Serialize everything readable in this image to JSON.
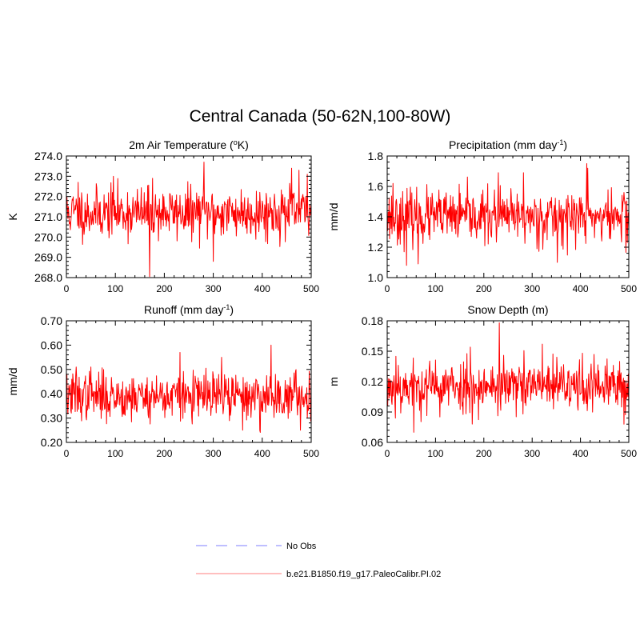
{
  "figure": {
    "title": "Central Canada (50-62N,100-80W)"
  },
  "legend": {
    "position": "bottom-center",
    "items": [
      {
        "label": "No Obs",
        "color": "#9999ff",
        "dash": true
      },
      {
        "label": "b.e21.B1850.f19_g17.PaleoCalibr.PI.02",
        "color": "#ff9999",
        "dash": false
      }
    ]
  },
  "chart_data": [
    {
      "type": "line",
      "title": "2m Air Temperature (",
      "title_unit": "o",
      "title_unit_mode": "sup",
      "title_after": "K)",
      "ylabel": "K",
      "xlim": [
        0,
        500
      ],
      "ylim": [
        268.0,
        274.0
      ],
      "xticks": [
        "0",
        "100",
        "200",
        "300",
        "400",
        "500"
      ],
      "yticks": [
        "268.0",
        "269.0",
        "270.0",
        "271.0",
        "272.0",
        "273.0",
        "274.0"
      ],
      "series": [
        {
          "color": "#ff0000",
          "mean": 271.2,
          "sd": 0.62,
          "seed": 11,
          "spikes": [
            [
              24,
              272.7
            ],
            [
              96,
              273.0
            ],
            [
              170,
              268.05
            ],
            [
              176,
              272.9
            ],
            [
              281,
              273.7
            ],
            [
              300,
              268.8
            ],
            [
              460,
              273.4
            ],
            [
              475,
              273.3
            ],
            [
              492,
              273.1
            ]
          ]
        }
      ]
    },
    {
      "type": "line",
      "title": "Precipitation (mm day",
      "title_unit": "-1",
      "title_unit_mode": "sup",
      "title_after": ")",
      "ylabel": "mm/d",
      "xlim": [
        0,
        500
      ],
      "ylim": [
        1.0,
        1.8
      ],
      "xticks": [
        "0",
        "100",
        "200",
        "300",
        "400",
        "500"
      ],
      "yticks": [
        "1.0",
        "1.2",
        "1.4",
        "1.6",
        "1.8"
      ],
      "series": [
        {
          "color": "#ff0000",
          "mean": 1.4,
          "sd": 0.085,
          "seed": 23,
          "spikes": [
            [
              12,
              1.62
            ],
            [
              40,
              1.08
            ],
            [
              64,
              1.09
            ],
            [
              230,
              1.69
            ],
            [
              282,
              1.69
            ],
            [
              352,
              1.1
            ],
            [
              413,
              1.75
            ],
            [
              415,
              1.72
            ],
            [
              490,
              1.56
            ]
          ]
        }
      ]
    },
    {
      "type": "line",
      "title": "Runoff (mm day",
      "title_unit": "-1",
      "title_unit_mode": "sup",
      "title_after": ")",
      "ylabel": "mm/d",
      "xlim": [
        0,
        500
      ],
      "ylim": [
        0.2,
        0.7
      ],
      "xticks": [
        "0",
        "100",
        "200",
        "300",
        "400",
        "500"
      ],
      "yticks": [
        "0.20",
        "0.30",
        "0.40",
        "0.50",
        "0.60",
        "0.70"
      ],
      "series": [
        {
          "color": "#ff0000",
          "mean": 0.39,
          "sd": 0.048,
          "seed": 37,
          "spikes": [
            [
              20,
              0.51
            ],
            [
              50,
              0.51
            ],
            [
              232,
              0.57
            ],
            [
              317,
              0.55
            ],
            [
              360,
              0.25
            ],
            [
              395,
              0.25
            ],
            [
              418,
              0.6
            ],
            [
              478,
              0.25
            ]
          ]
        }
      ]
    },
    {
      "type": "line",
      "title": "Snow Depth (m)",
      "title_unit": "",
      "title_unit_mode": "none",
      "title_after": "",
      "ylabel": "m",
      "xlim": [
        0,
        500
      ],
      "ylim": [
        0.06,
        0.18
      ],
      "xticks": [
        "0",
        "100",
        "200",
        "300",
        "400",
        "500"
      ],
      "yticks": [
        "0.06",
        "0.09",
        "0.12",
        "0.15",
        "0.18"
      ],
      "series": [
        {
          "color": "#ff0000",
          "mean": 0.115,
          "sd": 0.013,
          "seed": 53,
          "spikes": [
            [
              18,
              0.145
            ],
            [
              55,
              0.07
            ],
            [
              172,
              0.154
            ],
            [
              232,
              0.178
            ],
            [
              241,
              0.146
            ],
            [
              321,
              0.157
            ],
            [
              404,
              0.148
            ],
            [
              490,
              0.078
            ]
          ]
        }
      ]
    }
  ]
}
